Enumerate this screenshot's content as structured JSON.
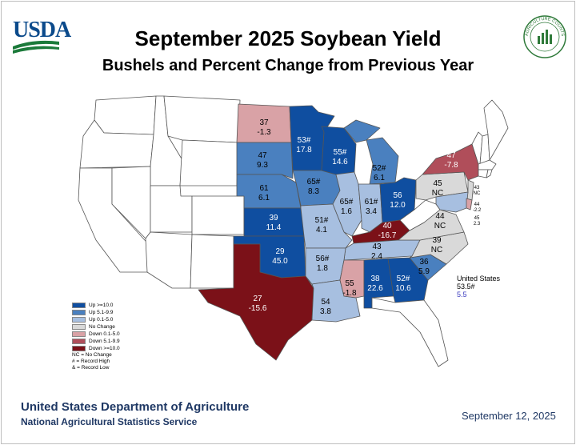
{
  "header": {
    "title": "September 2025 Soybean Yield",
    "subtitle": "Bushels and Percent Change from Previous Year",
    "agency_logo_text": "USDA",
    "seal_text": "AGRICULTURE COUNTS"
  },
  "colors": {
    "up_ge_10": "#0f4ea0",
    "up_5_10": "#4a80bf",
    "up_0_5": "#a7bfe0",
    "no_change": "#d9d9d9",
    "down_0_5": "#d9a2a6",
    "down_5_10": "#b04e5a",
    "down_ge_10": "#7b1118",
    "not_estimated": "#ffffff"
  },
  "legend": {
    "items": [
      {
        "label": "Up >=10.0",
        "color": "#0f4ea0"
      },
      {
        "label": "Up 5.1-9.9",
        "color": "#4a80bf"
      },
      {
        "label": "Up 0.1-5.0",
        "color": "#a7bfe0"
      },
      {
        "label": "No Change",
        "color": "#d9d9d9"
      },
      {
        "label": "Down 0.1-5.0",
        "color": "#d9a2a6"
      },
      {
        "label": "Down 5.1-9.9",
        "color": "#b04e5a"
      },
      {
        "label": "Down >=10.0",
        "color": "#7b1118"
      }
    ],
    "notes": [
      "NC = No Change",
      "# = Record High",
      "& = Record Low"
    ]
  },
  "states": [
    {
      "name": "North Dakota",
      "yield": "37",
      "change": "-1.3",
      "category": "down_0_5"
    },
    {
      "name": "Minnesota",
      "yield": "53#",
      "change": "17.8",
      "category": "up_ge_10"
    },
    {
      "name": "South Dakota",
      "yield": "47",
      "change": "9.3",
      "category": "up_5_10"
    },
    {
      "name": "Wisconsin",
      "yield": "55#",
      "change": "14.6",
      "category": "up_ge_10"
    },
    {
      "name": "Michigan",
      "yield": "52#",
      "change": "6.1",
      "category": "up_5_10"
    },
    {
      "name": "Nebraska",
      "yield": "61",
      "change": "6.1",
      "category": "up_5_10"
    },
    {
      "name": "Iowa",
      "yield": "65#",
      "change": "8.3",
      "category": "up_5_10"
    },
    {
      "name": "Illinois",
      "yield": "65#",
      "change": "1.6",
      "category": "up_0_5"
    },
    {
      "name": "Indiana",
      "yield": "61#",
      "change": "3.4",
      "category": "up_0_5"
    },
    {
      "name": "Ohio",
      "yield": "56",
      "change": "12.0",
      "category": "up_ge_10"
    },
    {
      "name": "Kansas",
      "yield": "39",
      "change": "11.4",
      "category": "up_ge_10"
    },
    {
      "name": "Missouri",
      "yield": "51#",
      "change": "4.1",
      "category": "up_0_5"
    },
    {
      "name": "Kentucky",
      "yield": "40",
      "change": "-16.7",
      "category": "down_ge_10"
    },
    {
      "name": "Oklahoma",
      "yield": "29",
      "change": "45.0",
      "category": "up_ge_10"
    },
    {
      "name": "Arkansas",
      "yield": "56#",
      "change": "1.8",
      "category": "up_0_5"
    },
    {
      "name": "Tennessee",
      "yield": "43",
      "change": "2.4",
      "category": "up_0_5"
    },
    {
      "name": "Texas",
      "yield": "27",
      "change": "-15.6",
      "category": "down_ge_10"
    },
    {
      "name": "Mississippi",
      "yield": "55",
      "change": "-1.8",
      "category": "down_0_5"
    },
    {
      "name": "Louisiana",
      "yield": "54",
      "change": "3.8",
      "category": "up_0_5"
    },
    {
      "name": "Alabama",
      "yield": "38",
      "change": "22.6",
      "category": "up_ge_10"
    },
    {
      "name": "Georgia",
      "yield": "52#",
      "change": "10.6",
      "category": "up_ge_10"
    },
    {
      "name": "South Carolina",
      "yield": "36",
      "change": "5.9",
      "category": "up_5_10"
    },
    {
      "name": "North Carolina",
      "yield": "39",
      "change": "NC",
      "category": "no_change"
    },
    {
      "name": "Virginia",
      "yield": "44",
      "change": "NC",
      "category": "no_change"
    },
    {
      "name": "Pennsylvania",
      "yield": "45",
      "change": "NC",
      "category": "no_change"
    },
    {
      "name": "New York",
      "yield": "47",
      "change": "-7.8",
      "category": "down_5_10"
    },
    {
      "name": "New Jersey",
      "yield": "43",
      "change": "NC",
      "category": "no_change"
    },
    {
      "name": "Delaware",
      "yield": "44",
      "change": "-2.2",
      "category": "down_0_5"
    },
    {
      "name": "Maryland",
      "yield": "45",
      "change": "2.3",
      "category": "up_0_5"
    }
  ],
  "united_states": {
    "label": "United States",
    "yield": "53.5#",
    "change": "5.5"
  },
  "footer": {
    "department": "United States Department of Agriculture",
    "service": "National Agricultural Statistics Service",
    "date": "September 12, 2025"
  }
}
